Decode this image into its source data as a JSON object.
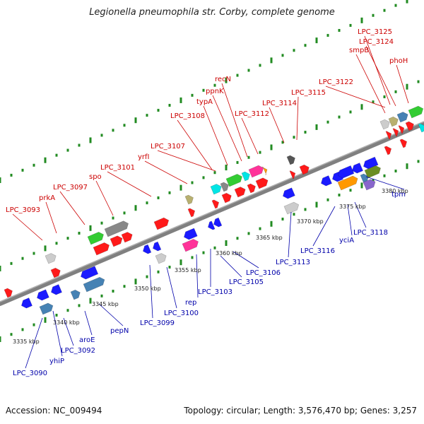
{
  "title": "Legionella pneumophila str. Corby, complete genome",
  "footer": {
    "accession": "Accession: NC_009494",
    "stats": "Topology: circular; Length: 3,576,470 bp; Genes: 3,257"
  },
  "colors": {
    "forward_label": "#cc0000",
    "reverse_label": "#0000aa",
    "backbone": "#808080",
    "dots": "#228b22"
  },
  "ticks": [
    "3335 kbp",
    "3340 kbp",
    "3345 kbp",
    "3350 kbp",
    "3355 kbp",
    "3360 kbp",
    "3365 kbp",
    "3370 kbp",
    "3375 kbp",
    "3380 kbp"
  ],
  "forward_labels": [
    "LPC_3093",
    "prkA",
    "LPC_3097",
    "spo",
    "LPC_3101",
    "yrfI",
    "LPC_3107",
    "LPC_3108",
    "typA",
    "ppnK",
    "recN",
    "LPC_3112",
    "LPC_3114",
    "LPC_3115",
    "LPC_3122",
    "smpB",
    "LPC_3124",
    "LPC_3125",
    "phoH"
  ],
  "reverse_labels": [
    "LPC_3090",
    "yhiP",
    "LPC_3092",
    "aroE",
    "pepN",
    "LPC_3099",
    "LPC_3100",
    "rep",
    "LPC_3103",
    "LPC_3105",
    "LPC_3106",
    "LPC_3113",
    "LPC_3116",
    "yciA",
    "LPC_3118",
    "tpm"
  ],
  "gene_colors": [
    "red",
    "blue",
    "green",
    "gray",
    "dark-gray",
    "light-gray",
    "pink",
    "cyan",
    "orange",
    "purple",
    "olive",
    "tan",
    "steel-blue",
    "yellow"
  ]
}
